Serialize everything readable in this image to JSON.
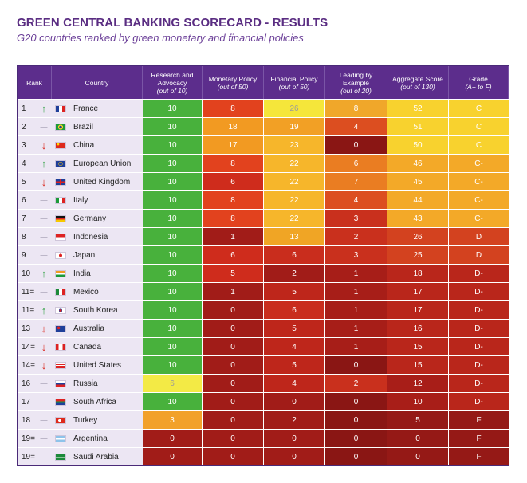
{
  "title": "GREEN CENTRAL BANKING SCORECARD - RESULTS",
  "subtitle": "G20 countries ranked by green monetary and financial policies",
  "chart_data": {
    "type": "table",
    "headers": [
      {
        "key": "rank",
        "label": "Rank",
        "sub": ""
      },
      {
        "key": "country",
        "label": "Country",
        "sub": ""
      },
      {
        "key": "research",
        "label": "Research and Advocacy",
        "sub": "(out of 10)"
      },
      {
        "key": "monetary",
        "label": "Monetary Policy",
        "sub": "(out of 50)"
      },
      {
        "key": "financial",
        "label": "Financial Policy",
        "sub": "(out of 50)"
      },
      {
        "key": "leading",
        "label": "Leading by Example",
        "sub": "(out of 20)"
      },
      {
        "key": "aggregate",
        "label": "Aggregate Score",
        "sub": "(out of 130)"
      },
      {
        "key": "grade",
        "label": "Grade",
        "sub": "(A+ to F)"
      }
    ],
    "rows": [
      {
        "rank": "1",
        "trend": "up",
        "country": "France",
        "flag": "france",
        "scores": [
          10,
          8,
          26,
          8,
          52
        ],
        "grade": "C"
      },
      {
        "rank": "2",
        "trend": "same",
        "country": "Brazil",
        "flag": "brazil",
        "scores": [
          10,
          18,
          19,
          4,
          51
        ],
        "grade": "C"
      },
      {
        "rank": "3",
        "trend": "down",
        "country": "China",
        "flag": "china",
        "scores": [
          10,
          17,
          23,
          0,
          50
        ],
        "grade": "C"
      },
      {
        "rank": "4",
        "trend": "up",
        "country": "European Union",
        "flag": "eu",
        "scores": [
          10,
          8,
          22,
          6,
          46
        ],
        "grade": "C-"
      },
      {
        "rank": "5",
        "trend": "down",
        "country": "United Kingdom",
        "flag": "uk",
        "scores": [
          10,
          6,
          22,
          7,
          45
        ],
        "grade": "C-"
      },
      {
        "rank": "6",
        "trend": "same",
        "country": "Italy",
        "flag": "italy",
        "scores": [
          10,
          8,
          22,
          4,
          44
        ],
        "grade": "C-"
      },
      {
        "rank": "7",
        "trend": "same",
        "country": "Germany",
        "flag": "germany",
        "scores": [
          10,
          8,
          22,
          3,
          43
        ],
        "grade": "C-"
      },
      {
        "rank": "8",
        "trend": "same",
        "country": "Indonesia",
        "flag": "indonesia",
        "scores": [
          10,
          1,
          13,
          2,
          26
        ],
        "grade": "D"
      },
      {
        "rank": "9",
        "trend": "same",
        "country": "Japan",
        "flag": "japan",
        "scores": [
          10,
          6,
          6,
          3,
          25
        ],
        "grade": "D"
      },
      {
        "rank": "10",
        "trend": "up",
        "country": "India",
        "flag": "india",
        "scores": [
          10,
          5,
          2,
          1,
          18
        ],
        "grade": "D-"
      },
      {
        "rank": "11=",
        "trend": "same",
        "country": "Mexico",
        "flag": "mexico",
        "scores": [
          10,
          1,
          5,
          1,
          17
        ],
        "grade": "D-"
      },
      {
        "rank": "11=",
        "trend": "up",
        "country": "South Korea",
        "flag": "korea",
        "scores": [
          10,
          0,
          6,
          1,
          17
        ],
        "grade": "D-"
      },
      {
        "rank": "13",
        "trend": "down",
        "country": "Australia",
        "flag": "australia",
        "scores": [
          10,
          0,
          5,
          1,
          16
        ],
        "grade": "D-"
      },
      {
        "rank": "14=",
        "trend": "down",
        "country": "Canada",
        "flag": "canada",
        "scores": [
          10,
          0,
          4,
          1,
          15
        ],
        "grade": "D-"
      },
      {
        "rank": "14=",
        "trend": "down",
        "country": "United States",
        "flag": "usa",
        "scores": [
          10,
          0,
          5,
          0,
          15
        ],
        "grade": "D-"
      },
      {
        "rank": "16",
        "trend": "same",
        "country": "Russia",
        "flag": "russia",
        "scores": [
          6,
          0,
          4,
          2,
          12
        ],
        "grade": "D-"
      },
      {
        "rank": "17",
        "trend": "same",
        "country": "South Africa",
        "flag": "southafrica",
        "scores": [
          10,
          0,
          0,
          0,
          10
        ],
        "grade": "D-"
      },
      {
        "rank": "18",
        "trend": "same",
        "country": "Turkey",
        "flag": "turkey",
        "scores": [
          3,
          0,
          2,
          0,
          5
        ],
        "grade": "F"
      },
      {
        "rank": "19=",
        "trend": "same",
        "country": "Argentina",
        "flag": "argentina",
        "scores": [
          0,
          0,
          0,
          0,
          0
        ],
        "grade": "F"
      },
      {
        "rank": "19=",
        "trend": "same",
        "country": "Saudi Arabia",
        "flag": "saudi",
        "scores": [
          0,
          0,
          0,
          0,
          0
        ],
        "grade": "F"
      }
    ],
    "trend_colors": {
      "up": "#2ea043",
      "down": "#d9261c",
      "same": "#b9b2c4"
    },
    "header_color": "#5c2d8c"
  }
}
